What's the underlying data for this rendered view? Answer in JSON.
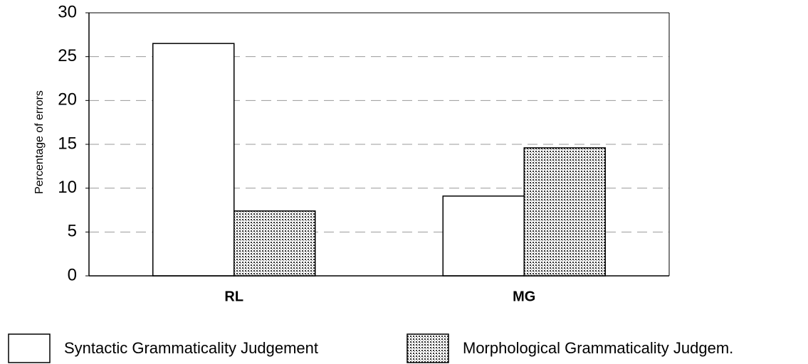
{
  "chart_data": {
    "type": "bar",
    "y_label": "Percentage of errors",
    "categories": [
      "RL",
      "MG"
    ],
    "series": [
      {
        "name": "Syntactic Grammaticality Judgement",
        "color": "#ffffff",
        "values": [
          26.5,
          9.1
        ]
      },
      {
        "name": "Morphological Grammaticality Judgem.",
        "color": "#888888",
        "values": [
          7.4,
          14.6
        ]
      }
    ],
    "ylim": [
      0,
      30
    ],
    "yticks": [
      0,
      5,
      10,
      15,
      20,
      25,
      30
    ],
    "grid": true
  }
}
